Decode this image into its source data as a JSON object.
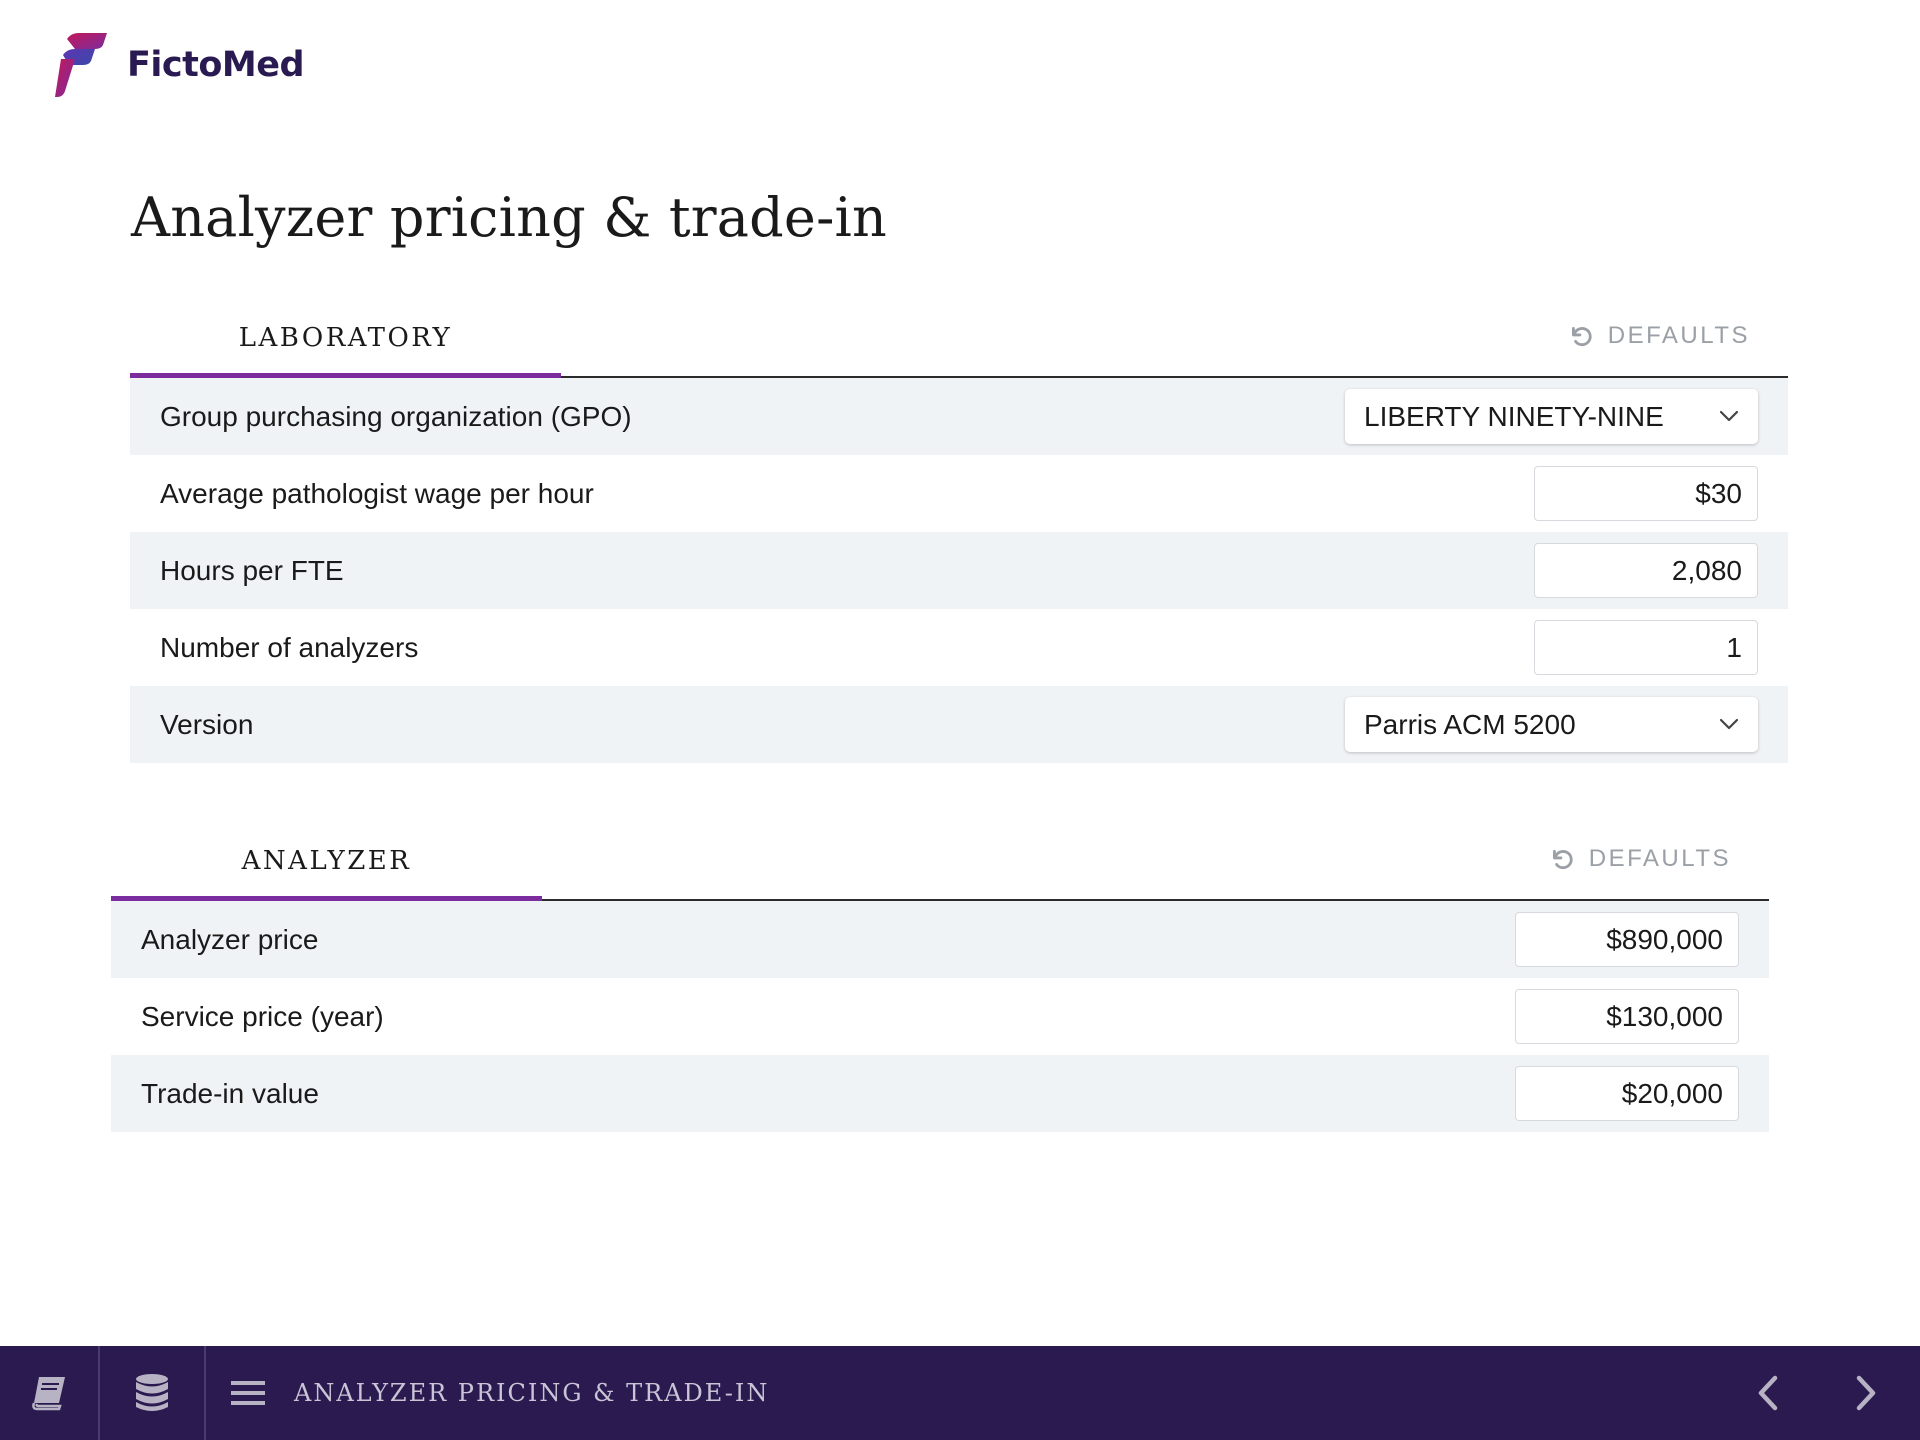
{
  "brand": {
    "name": "FictoMed"
  },
  "page": {
    "title": "Analyzer pricing & trade-in"
  },
  "sections": {
    "laboratory": {
      "tab_label": "LABORATORY",
      "defaults_label": "DEFAULTS",
      "rows": {
        "gpo": {
          "label": "Group purchasing organization (GPO)",
          "value": "LIBERTY NINETY-NINE"
        },
        "wage": {
          "label": "Average pathologist wage per hour",
          "value": "$30"
        },
        "hours": {
          "label": "Hours per FTE",
          "value": "2,080"
        },
        "analyzers": {
          "label": "Number of analyzers",
          "value": "1"
        },
        "version": {
          "label": "Version",
          "value": "Parris ACM 5200"
        }
      }
    },
    "analyzer": {
      "tab_label": "ANALYZER",
      "defaults_label": "DEFAULTS",
      "rows": {
        "price": {
          "label": "Analyzer price",
          "value": "$890,000"
        },
        "service": {
          "label": "Service price (year)",
          "value": "$130,000"
        },
        "tradein": {
          "label": "Trade-in value",
          "value": "$20,000"
        }
      }
    }
  },
  "bottom_bar": {
    "title": "ANALYZER PRICING & TRADE-IN",
    "icons": [
      "book-icon",
      "database-icon",
      "menu-icon",
      "chevron-left-icon",
      "chevron-right-icon"
    ]
  },
  "colors": {
    "accent": "#7b2c9e",
    "brand_text": "#2a1a52",
    "bottom_bar": "#2a1a4f",
    "row_shade": "#f0f3f6",
    "muted": "#9aa0a6"
  }
}
